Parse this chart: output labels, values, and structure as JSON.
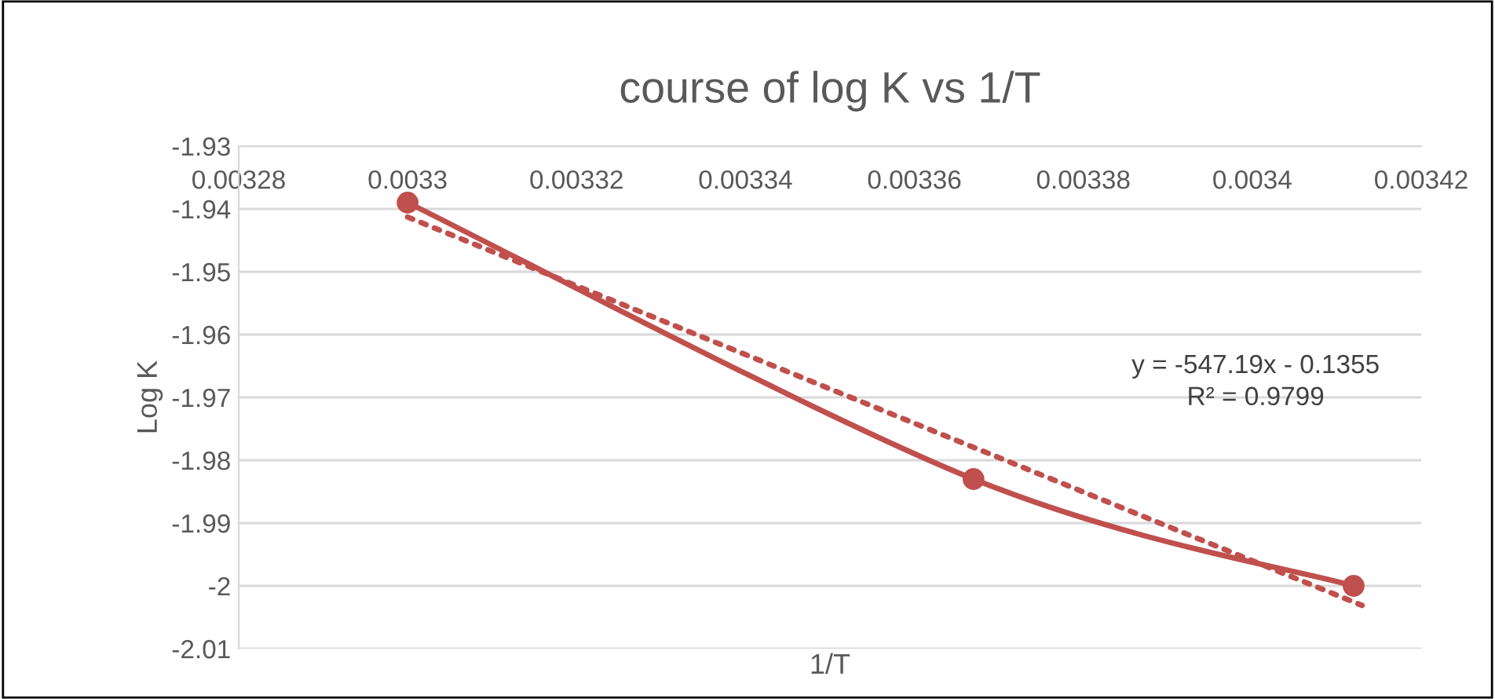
{
  "chart_data": {
    "type": "line",
    "title": "course of log K vs 1/T",
    "xlabel": "1/T",
    "ylabel": "Log K",
    "series": [
      {
        "x": [
          0.0033,
          0.003367,
          0.003412
        ],
        "values": [
          -1.939,
          -1.983,
          -2.0
        ],
        "color": "#c0504d",
        "marker": "circle",
        "line_style": "solid"
      },
      {
        "x": [
          0.0033,
          0.003413
        ],
        "values": [
          -1.9413,
          -2.0031
        ],
        "color": "#c0504d",
        "marker": "none",
        "line_style": "dotted"
      }
    ],
    "annotations": [
      "y = -547.19x - 0.1355\nR² = 0.9799"
    ],
    "xlim": [
      0.00328,
      0.00342
    ],
    "xticks": [
      0.00328,
      0.0033,
      0.00332,
      0.00334,
      0.00336,
      0.00338,
      0.0034,
      0.00342
    ],
    "ylim": [
      -2.01,
      -1.93
    ],
    "yticks": [
      -1.93,
      -1.94,
      -1.95,
      -1.96,
      -1.97,
      -1.98,
      -1.99,
      -2,
      -2.01
    ],
    "grid": "y",
    "legend": false
  }
}
